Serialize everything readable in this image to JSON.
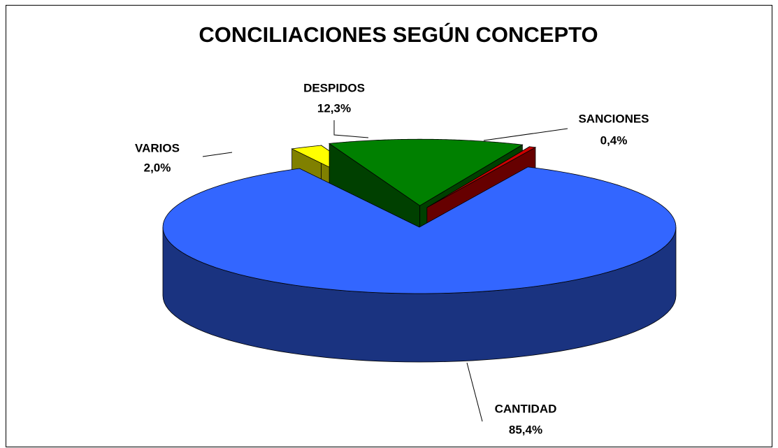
{
  "chart_data": {
    "type": "pie3d",
    "title": "CONCILIACIONES SEGÚN CONCEPTO",
    "categories": [
      "CANTIDAD",
      "VARIOS",
      "DESPIDOS",
      "SANCIONES"
    ],
    "values": [
      85.4,
      2.0,
      12.3,
      0.4
    ],
    "value_labels": [
      "85,4%",
      "2,0%",
      "12,3%",
      "0,4%"
    ],
    "colors": [
      "#3366ff",
      "#ffff00",
      "#008000",
      "#cc0000"
    ]
  }
}
